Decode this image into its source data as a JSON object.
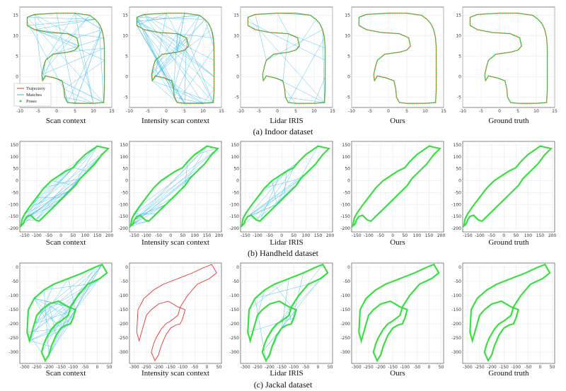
{
  "colors": {
    "trajectory": "#e8312f",
    "matches": "#35b6e6",
    "poses": "#27e53a",
    "axis": "#333333",
    "grid": "#e6e6e6"
  },
  "legend": {
    "trajectory": "Trajectory",
    "matches": "Matches",
    "poses": "Poses"
  },
  "chart_data": [
    {
      "type": "line",
      "caption": "(a) Indoor dataset",
      "subplots": [
        "Scan context",
        "Intensity scan context",
        "Lidar IRIS",
        "Ours",
        "Ground truth"
      ],
      "x_ticks": [
        -10,
        -5,
        0,
        5,
        10,
        15
      ],
      "y_ticks": [
        -5,
        0,
        5,
        10,
        15
      ],
      "xlim": [
        -10,
        15
      ],
      "ylim": [
        -7.5,
        17
      ],
      "trajectory": [
        [
          -8,
          13.5
        ],
        [
          -8,
          14.5
        ],
        [
          -6,
          15.2
        ],
        [
          0,
          15.5
        ],
        [
          5,
          15.5
        ],
        [
          9,
          15
        ],
        [
          10.5,
          14
        ],
        [
          11.5,
          13
        ],
        [
          12.3,
          11.5
        ],
        [
          12.8,
          9.5
        ],
        [
          13,
          7
        ],
        [
          13,
          4
        ],
        [
          13,
          0
        ],
        [
          13,
          -3
        ],
        [
          12.8,
          -6.3
        ],
        [
          10,
          -6.5
        ],
        [
          5,
          -6.5
        ],
        [
          3,
          -6.3
        ],
        [
          2.2,
          -5
        ],
        [
          2,
          -3
        ],
        [
          1.5,
          -1
        ],
        [
          -0.5,
          -0.3
        ],
        [
          -3,
          0.2
        ],
        [
          -3.8,
          -1
        ],
        [
          -4,
          0.5
        ],
        [
          -3.5,
          2.5
        ],
        [
          -3,
          4
        ],
        [
          -1,
          5.5
        ],
        [
          3,
          6
        ],
        [
          5,
          6.5
        ],
        [
          6,
          7.5
        ],
        [
          5.5,
          9.5
        ],
        [
          3,
          10.5
        ],
        [
          -2,
          10.8
        ],
        [
          -6,
          11.5
        ],
        [
          -8,
          12.5
        ]
      ],
      "poses_drawn": true,
      "matches": [
        "many",
        "many",
        "some",
        "none",
        "none"
      ],
      "match_density": [
        45,
        60,
        15,
        0,
        0
      ],
      "pose_trajectory_visible": [
        true,
        false,
        true,
        false,
        false
      ]
    },
    {
      "type": "line",
      "caption": "(b) Handheld dataset",
      "subplots": [
        "Scan context",
        "Intensity scan context",
        "Lidar IRIS",
        "Ours",
        "Ground truth"
      ],
      "x_ticks": [
        -150,
        -100,
        -50,
        0,
        50,
        100,
        150,
        200
      ],
      "y_ticks": [
        -200,
        -150,
        -100,
        -50,
        0,
        50,
        100,
        150
      ],
      "xlim": [
        -170,
        210
      ],
      "ylim": [
        -215,
        165
      ],
      "trajectory": [
        [
          -165,
          -190
        ],
        [
          -155,
          -180
        ],
        [
          -150,
          -165
        ],
        [
          -140,
          -150
        ],
        [
          -125,
          -145
        ],
        [
          -115,
          -155
        ],
        [
          -105,
          -165
        ],
        [
          -90,
          -170
        ],
        [
          -60,
          -140
        ],
        [
          -20,
          -100
        ],
        [
          10,
          -70
        ],
        [
          40,
          -40
        ],
        [
          60,
          -20
        ],
        [
          80,
          10
        ],
        [
          110,
          40
        ],
        [
          140,
          70
        ],
        [
          170,
          110
        ],
        [
          195,
          135
        ],
        [
          150,
          145
        ],
        [
          100,
          110
        ],
        [
          70,
          80
        ],
        [
          50,
          55
        ],
        [
          20,
          40
        ],
        [
          -10,
          20
        ],
        [
          -40,
          0
        ],
        [
          -70,
          -30
        ],
        [
          -100,
          -70
        ],
        [
          -130,
          -110
        ],
        [
          -150,
          -140
        ],
        [
          -160,
          -160
        ]
      ],
      "match_density": [
        40,
        25,
        20,
        0,
        0
      ]
    },
    {
      "type": "line",
      "caption": "(c) Jackal dataset",
      "subplots": [
        "Scan context",
        "Intensity scan context",
        "Lidar IRIS",
        "Ours",
        "Ground truth"
      ],
      "x_ticks": [
        -300,
        -250,
        -200,
        -150,
        -100,
        -50,
        0,
        50
      ],
      "y_ticks": [
        -300,
        -250,
        -200,
        -150,
        -100,
        -50,
        0
      ],
      "xlim": [
        -320,
        60
      ],
      "ylim": [
        -340,
        15
      ],
      "trajectory": [
        [
          -280,
          -260
        ],
        [
          -290,
          -230
        ],
        [
          -285,
          -150
        ],
        [
          -260,
          -110
        ],
        [
          -220,
          -80
        ],
        [
          -180,
          -60
        ],
        [
          -120,
          -40
        ],
        [
          -60,
          -20
        ],
        [
          -10,
          0
        ],
        [
          20,
          10
        ],
        [
          40,
          -20
        ],
        [
          10,
          -40
        ],
        [
          -40,
          -60
        ],
        [
          -80,
          -100
        ],
        [
          -110,
          -140
        ],
        [
          -120,
          -170
        ],
        [
          -150,
          -190
        ],
        [
          -170,
          -200
        ],
        [
          -190,
          -220
        ],
        [
          -210,
          -250
        ],
        [
          -220,
          -270
        ],
        [
          -230,
          -300
        ],
        [
          -215,
          -330
        ],
        [
          -200,
          -310
        ],
        [
          -190,
          -280
        ],
        [
          -170,
          -240
        ],
        [
          -150,
          -215
        ],
        [
          -130,
          -205
        ],
        [
          -110,
          -200
        ],
        [
          -100,
          -180
        ],
        [
          -90,
          -150
        ],
        [
          -120,
          -140
        ],
        [
          -160,
          -120
        ],
        [
          -200,
          -130
        ],
        [
          -230,
          -150
        ],
        [
          -250,
          -170
        ],
        [
          -260,
          -200
        ],
        [
          -270,
          -230
        ]
      ],
      "match_density": [
        50,
        0,
        20,
        0,
        0
      ]
    }
  ]
}
